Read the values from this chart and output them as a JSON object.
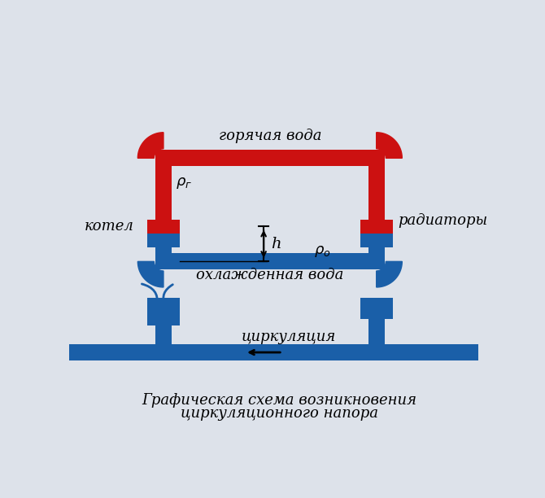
{
  "bg_color": "#dde2ea",
  "red_color": "#cc1111",
  "blue_color": "#1a5fa8",
  "title": "Графическая схема возникновения",
  "title2": "циркуляционного напора",
  "label_hot": "горячая вода",
  "label_cold": "охлажденная вода",
  "label_boiler": "котел",
  "label_radiators": "радиаторы",
  "label_circulation": "циркуляция"
}
